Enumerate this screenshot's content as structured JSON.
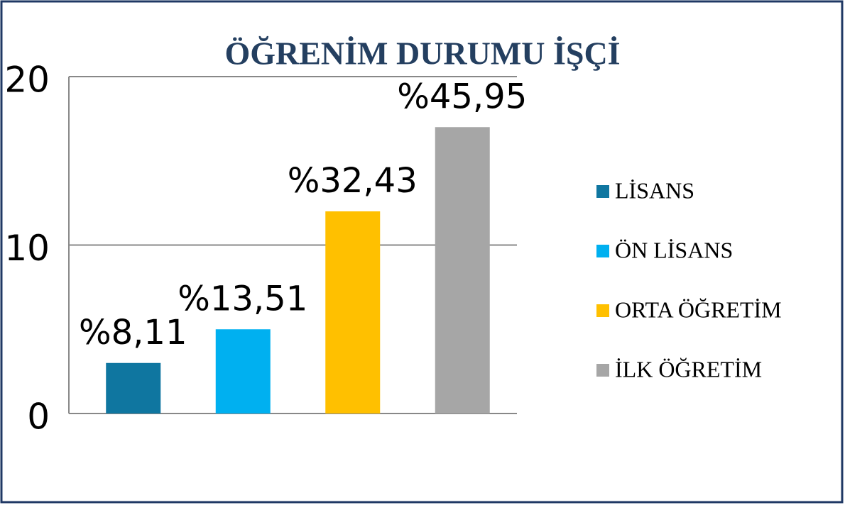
{
  "chart_data": {
    "type": "bar",
    "title": "ÖĞRENİM DURUMU İŞÇİ",
    "categories": [
      "LİSANS",
      "ÖN LİSANS",
      "ORTA ÖĞRETİM",
      "İLK ÖĞRETİM"
    ],
    "values": [
      3,
      5,
      12,
      17
    ],
    "value_labels": [
      "%8,11",
      "%13,51",
      "%32,43",
      "%45,95"
    ],
    "colors": [
      "#0f76a0",
      "#00b0f0",
      "#ffc000",
      "#a6a6a6"
    ],
    "ylim": [
      0,
      20
    ],
    "yticks": [
      0,
      10,
      20
    ],
    "grid": true,
    "legend": "right"
  }
}
